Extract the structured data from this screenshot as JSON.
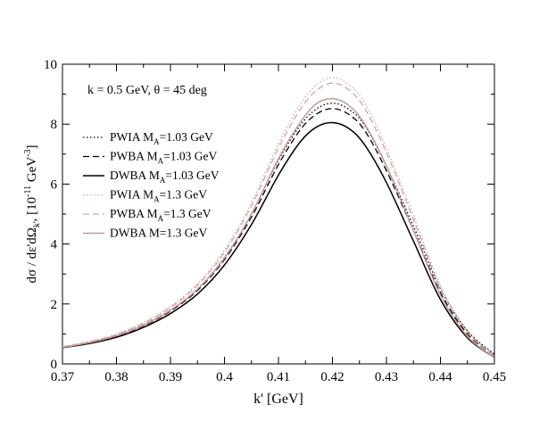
{
  "chart_data": {
    "type": "line",
    "title": "",
    "annotation": "k = 0.5 GeV, θ = 45 deg",
    "xlabel": "k' [GeV]",
    "ylabel_parts": {
      "main": "dσ / dε'dΩ",
      "sub": "k'",
      "unit_open": ", [10",
      "unit_exp1": "-11",
      "unit_mid": " GeV",
      "unit_exp2": "-3",
      "unit_close": "]"
    },
    "xlim": [
      0.37,
      0.45
    ],
    "ylim": [
      0,
      10
    ],
    "xticks": [
      "0.37",
      "0.38",
      "0.39",
      "0.4",
      "0.41",
      "0.42",
      "0.43",
      "0.44",
      "0.45"
    ],
    "yticks": [
      "0",
      "2",
      "4",
      "6",
      "8",
      "10"
    ],
    "x": [
      0.37,
      0.375,
      0.38,
      0.385,
      0.39,
      0.395,
      0.4,
      0.405,
      0.41,
      0.414,
      0.417,
      0.42,
      0.423,
      0.426,
      0.43,
      0.435,
      0.44,
      0.445,
      0.45
    ],
    "series": [
      {
        "name": "PWIA",
        "legend_main": "PWIA M",
        "legend_sub": "A",
        "legend_tail": "=1.03 GeV",
        "color": "#000000",
        "dash": "dotted",
        "values": [
          0.56,
          0.72,
          0.95,
          1.3,
          1.8,
          2.5,
          3.55,
          5.0,
          6.8,
          7.95,
          8.5,
          8.7,
          8.5,
          7.95,
          6.6,
          4.6,
          2.5,
          1.1,
          0.33
        ]
      },
      {
        "name": "PWBA",
        "legend_main": "PWBA M",
        "legend_sub": "A",
        "legend_tail": "=1.03 GeV",
        "color": "#000000",
        "dash": "dashed",
        "values": [
          0.55,
          0.71,
          0.93,
          1.27,
          1.76,
          2.45,
          3.48,
          4.9,
          6.65,
          7.8,
          8.33,
          8.52,
          8.33,
          7.78,
          6.45,
          4.45,
          2.38,
          1.0,
          0.28
        ]
      },
      {
        "name": "DWBA",
        "legend_main": "DWBA M",
        "legend_sub": "A",
        "legend_tail": "=1.03 GeV",
        "color": "#000000",
        "dash": "solid",
        "values": [
          0.54,
          0.68,
          0.89,
          1.22,
          1.68,
          2.33,
          3.3,
          4.65,
          6.3,
          7.4,
          7.9,
          8.05,
          7.86,
          7.3,
          6.05,
          4.1,
          2.15,
          0.87,
          0.22
        ]
      },
      {
        "name": "PWIA",
        "legend_main": "PWIA M",
        "legend_sub": "A",
        "legend_tail": "=1.3 GeV",
        "color": "#d4a5a5",
        "dash": "dotted",
        "values": [
          0.58,
          0.75,
          1.0,
          1.38,
          1.92,
          2.68,
          3.8,
          5.38,
          7.35,
          8.65,
          9.3,
          9.55,
          9.33,
          8.7,
          7.2,
          4.95,
          2.62,
          1.1,
          0.3
        ]
      },
      {
        "name": "PWBA",
        "legend_main": "PWBA M",
        "legend_sub": "A",
        "legend_tail": "=1.3 GeV",
        "color": "#d4a5a5",
        "dash": "dashed",
        "values": [
          0.57,
          0.74,
          0.98,
          1.35,
          1.88,
          2.62,
          3.72,
          5.27,
          7.2,
          8.48,
          9.12,
          9.37,
          9.15,
          8.52,
          7.05,
          4.82,
          2.53,
          1.05,
          0.28
        ]
      },
      {
        "name": "DWBA",
        "legend_main": "DWBA M=1.3 GeV",
        "legend_sub": "",
        "legend_tail": "",
        "color": "#c49a9a",
        "dash": "solid",
        "values": [
          0.55,
          0.71,
          0.94,
          1.29,
          1.79,
          2.49,
          3.53,
          5.0,
          6.85,
          8.05,
          8.68,
          8.85,
          8.63,
          8.0,
          6.6,
          4.45,
          2.3,
          0.92,
          0.22
        ]
      }
    ]
  }
}
